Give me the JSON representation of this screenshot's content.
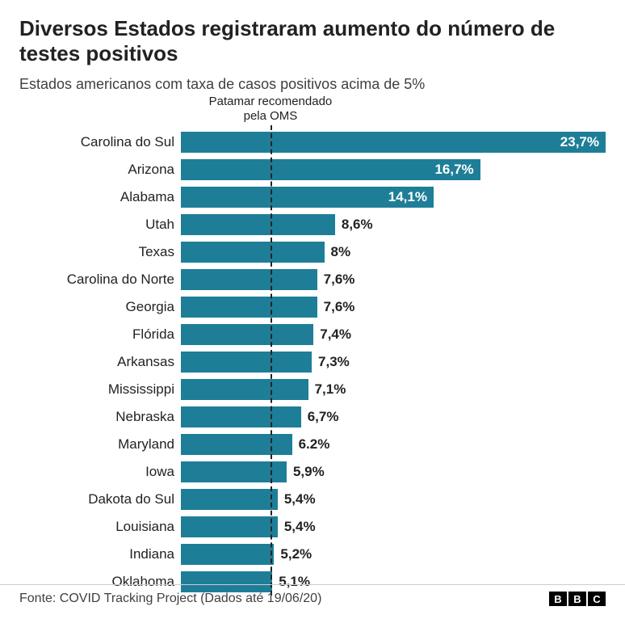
{
  "title": "Diversos Estados registraram aumento do número de testes positivos",
  "subtitle": "Estados americanos com taxa de casos positivos acima de 5%",
  "annotation": "Patamar recomendado\npela OMS",
  "source": "Fonte: COVID Tracking Project (Dados até 19/06/20)",
  "logo": [
    "B",
    "B",
    "C"
  ],
  "chart": {
    "type": "bar-horizontal",
    "bar_color": "#1e7e98",
    "value_color_inside": "#ffffff",
    "value_color_outside": "#222222",
    "category_color": "#222222",
    "background_color": "#ffffff",
    "title_fontsize": 26,
    "subtitle_fontsize": 18,
    "annotation_fontsize": 15,
    "category_fontsize": 17,
    "value_fontsize": 17,
    "footer_fontsize": 16,
    "max_value": 23.7,
    "reference_value": 5.0,
    "reference_line_color": "#222222",
    "label_inside_threshold": 12.0,
    "rows": [
      {
        "category": "Carolina do Sul",
        "value": 23.7,
        "label": "23,7%"
      },
      {
        "category": "Arizona",
        "value": 16.7,
        "label": "16,7%"
      },
      {
        "category": "Alabama",
        "value": 14.1,
        "label": "14,1%"
      },
      {
        "category": "Utah",
        "value": 8.6,
        "label": "8,6%"
      },
      {
        "category": "Texas",
        "value": 8.0,
        "label": "8%"
      },
      {
        "category": "Carolina do Norte",
        "value": 7.6,
        "label": "7,6%"
      },
      {
        "category": "Georgia",
        "value": 7.6,
        "label": "7,6%"
      },
      {
        "category": "Flórida",
        "value": 7.4,
        "label": "7,4%"
      },
      {
        "category": "Arkansas",
        "value": 7.3,
        "label": "7,3%"
      },
      {
        "category": "Mississippi",
        "value": 7.1,
        "label": "7,1%"
      },
      {
        "category": "Nebraska",
        "value": 6.7,
        "label": "6,7%"
      },
      {
        "category": "Maryland",
        "value": 6.2,
        "label": "6.2%"
      },
      {
        "category": "Iowa",
        "value": 5.9,
        "label": "5,9%"
      },
      {
        "category": "Dakota do Sul",
        "value": 5.4,
        "label": "5,4%"
      },
      {
        "category": "Louisiana",
        "value": 5.4,
        "label": "5,4%"
      },
      {
        "category": "Indiana",
        "value": 5.2,
        "label": "5,2%"
      },
      {
        "category": "Oklahoma",
        "value": 5.1,
        "label": "5,1%"
      }
    ]
  }
}
